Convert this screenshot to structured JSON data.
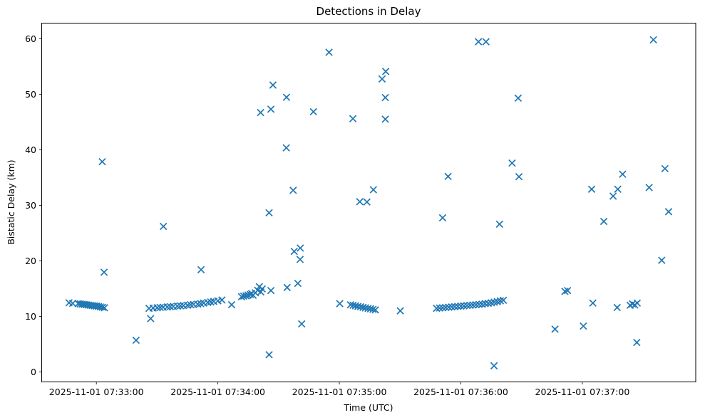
{
  "chart_data": {
    "type": "scatter",
    "title": "Detections in Delay",
    "xlabel": "Time (UTC)",
    "ylabel": "Bistatic Delay (km)",
    "marker": "x",
    "marker_color": "#1f77b4",
    "x_unit": "seconds after 2025-11-01 07:32:00 UTC",
    "xlim": [
      33,
      356
    ],
    "ylim": [
      -1.8,
      62.8
    ],
    "grid": false,
    "legend": "none",
    "x_ticks": [
      {
        "t": 60,
        "label": "2025-11-01 07:33:00"
      },
      {
        "t": 120,
        "label": "2025-11-01 07:34:00"
      },
      {
        "t": 180,
        "label": "2025-11-01 07:35:00"
      },
      {
        "t": 240,
        "label": "2025-11-01 07:36:00"
      },
      {
        "t": 300,
        "label": "2025-11-01 07:37:00"
      }
    ],
    "y_ticks": [
      0,
      10,
      20,
      30,
      40,
      50,
      60
    ],
    "points": [
      [
        46.5,
        12.45
      ],
      [
        48.3,
        12.35
      ],
      [
        51,
        12.3
      ],
      [
        52,
        12.25
      ],
      [
        53,
        12.2
      ],
      [
        54,
        12.15
      ],
      [
        55,
        12.1
      ],
      [
        56,
        12.05
      ],
      [
        57,
        12.0
      ],
      [
        58,
        11.95
      ],
      [
        59,
        11.9
      ],
      [
        60,
        11.85
      ],
      [
        61,
        11.8
      ],
      [
        62,
        11.7
      ],
      [
        63,
        11.65
      ],
      [
        64,
        11.55
      ],
      [
        62.9,
        37.85
      ],
      [
        63.8,
        17.95
      ],
      [
        79.6,
        5.7
      ],
      [
        86.8,
        9.6
      ],
      [
        93.1,
        26.2
      ],
      [
        111.7,
        18.4
      ],
      [
        86,
        11.45
      ],
      [
        88,
        11.5
      ],
      [
        90,
        11.55
      ],
      [
        91.5,
        11.6
      ],
      [
        93,
        11.65
      ],
      [
        95,
        11.7
      ],
      [
        96.5,
        11.75
      ],
      [
        98,
        11.8
      ],
      [
        100,
        11.85
      ],
      [
        101.5,
        11.9
      ],
      [
        103,
        11.95
      ],
      [
        105,
        12.0
      ],
      [
        106.5,
        12.1
      ],
      [
        108,
        12.15
      ],
      [
        110,
        12.2
      ],
      [
        111.5,
        12.3
      ],
      [
        113,
        12.4
      ],
      [
        115,
        12.5
      ],
      [
        116.5,
        12.6
      ],
      [
        118,
        12.7
      ],
      [
        120,
        12.8
      ],
      [
        122,
        12.95
      ],
      [
        126.8,
        12.1
      ],
      [
        131.7,
        13.55
      ],
      [
        132.8,
        13.65
      ],
      [
        133.9,
        13.7
      ],
      [
        134.9,
        13.85
      ],
      [
        136.0,
        13.95
      ],
      [
        136.7,
        14.1
      ],
      [
        137.4,
        13.8
      ],
      [
        138.5,
        14.25
      ],
      [
        139.7,
        14.7
      ],
      [
        140.5,
        15.35
      ],
      [
        141.2,
        14.4
      ],
      [
        141.9,
        14.95
      ],
      [
        146.2,
        14.65
      ],
      [
        154.2,
        15.2
      ],
      [
        159.5,
        15.95
      ],
      [
        141.1,
        46.7
      ],
      [
        145.3,
        28.65
      ],
      [
        145.3,
        3.1
      ],
      [
        146.2,
        47.3
      ],
      [
        147.2,
        51.65
      ],
      [
        153.8,
        40.35
      ],
      [
        153.9,
        49.45
      ],
      [
        157.2,
        32.7
      ],
      [
        157.7,
        21.7
      ],
      [
        160.6,
        20.25
      ],
      [
        160.7,
        22.3
      ],
      [
        161.4,
        8.65
      ],
      [
        167.2,
        46.85
      ],
      [
        174.9,
        57.55
      ],
      [
        180.2,
        12.3
      ],
      [
        185.5,
        12.08
      ],
      [
        186.8,
        12.0
      ],
      [
        188.0,
        11.9
      ],
      [
        189.2,
        11.8
      ],
      [
        190.5,
        11.73
      ],
      [
        191.7,
        11.62
      ],
      [
        192.9,
        11.53
      ],
      [
        194.2,
        11.44
      ],
      [
        195.4,
        11.36
      ],
      [
        196.6,
        11.27
      ],
      [
        197.8,
        11.17
      ],
      [
        210.1,
        11.0
      ],
      [
        186.7,
        45.6
      ],
      [
        190.1,
        30.65
      ],
      [
        193.6,
        30.6
      ],
      [
        196.8,
        32.8
      ],
      [
        201.1,
        52.75
      ],
      [
        202.7,
        49.4
      ],
      [
        202.7,
        45.5
      ],
      [
        202.9,
        54.1
      ],
      [
        231.0,
        27.75
      ],
      [
        233.7,
        35.2
      ],
      [
        228,
        11.45
      ],
      [
        229.5,
        11.5
      ],
      [
        231,
        11.55
      ],
      [
        232.5,
        11.6
      ],
      [
        234,
        11.65
      ],
      [
        235.5,
        11.7
      ],
      [
        237,
        11.75
      ],
      [
        238.5,
        11.8
      ],
      [
        240,
        11.85
      ],
      [
        241.5,
        11.9
      ],
      [
        243,
        11.95
      ],
      [
        244.5,
        12.0
      ],
      [
        246,
        12.05
      ],
      [
        247.5,
        12.1
      ],
      [
        249,
        12.15
      ],
      [
        250.5,
        12.2
      ],
      [
        252,
        12.3
      ],
      [
        253.5,
        12.35
      ],
      [
        255,
        12.45
      ],
      [
        256.5,
        12.55
      ],
      [
        258,
        12.65
      ],
      [
        259.5,
        12.8
      ],
      [
        261,
        12.9
      ],
      [
        248.7,
        59.45
      ],
      [
        252.4,
        59.45
      ],
      [
        256.4,
        1.1
      ],
      [
        259.1,
        26.6
      ],
      [
        265.3,
        37.6
      ],
      [
        268.3,
        49.3
      ],
      [
        268.7,
        35.15
      ],
      [
        286.5,
        7.7
      ],
      [
        291.4,
        14.5
      ],
      [
        292.7,
        14.65
      ],
      [
        300.5,
        8.25
      ],
      [
        304.6,
        32.9
      ],
      [
        305.2,
        12.4
      ],
      [
        310.6,
        27.1
      ],
      [
        315.2,
        31.65
      ],
      [
        317.2,
        11.6
      ],
      [
        317.5,
        32.9
      ],
      [
        319.9,
        35.6
      ],
      [
        323.6,
        12.0
      ],
      [
        324.8,
        12.25
      ],
      [
        325.9,
        12.05
      ],
      [
        327.1,
        12.4
      ],
      [
        326.9,
        5.3
      ],
      [
        333.0,
        33.2
      ],
      [
        335.1,
        59.8
      ],
      [
        339.2,
        20.1
      ],
      [
        340.8,
        36.6
      ],
      [
        342.6,
        28.85
      ]
    ]
  }
}
